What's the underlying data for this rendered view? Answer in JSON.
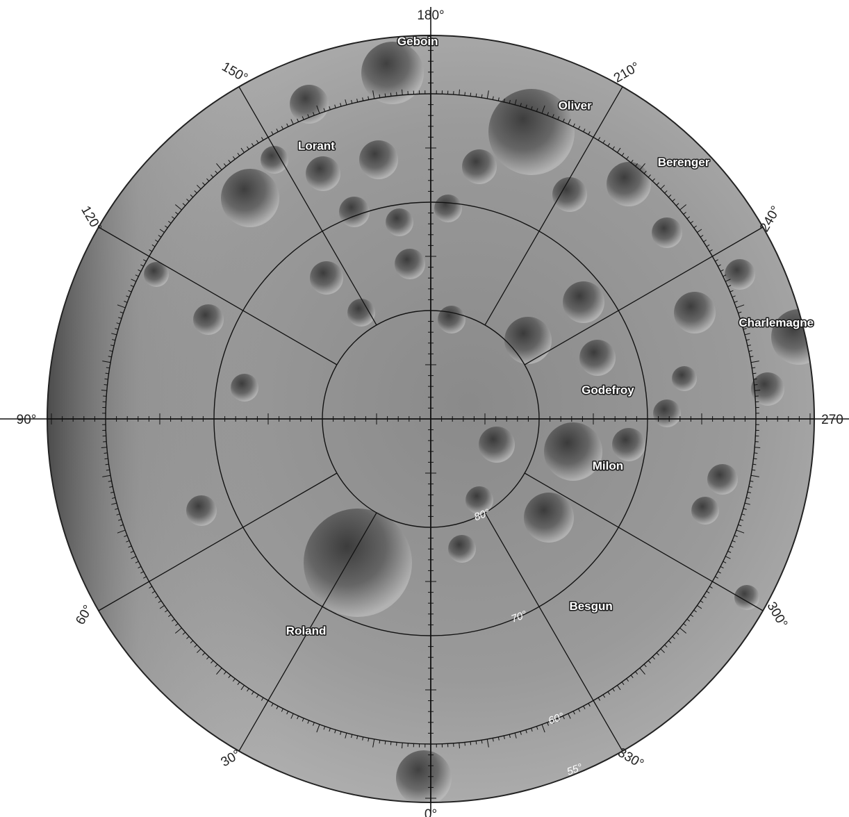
{
  "map": {
    "longitude_labels": [
      {
        "label": "180°",
        "lon": 180
      },
      {
        "label": "150°",
        "lon": 150
      },
      {
        "label": "210°",
        "lon": 210
      },
      {
        "label": "120°",
        "lon": 120
      },
      {
        "label": "240°",
        "lon": 240
      },
      {
        "label": "90°",
        "lon": 90
      },
      {
        "label": "270",
        "lon": 270
      },
      {
        "label": "60°",
        "lon": 60
      },
      {
        "label": "300°",
        "lon": 300
      },
      {
        "label": "30°",
        "lon": 30
      },
      {
        "label": "330°",
        "lon": 330
      },
      {
        "label": "0°",
        "lon": 0
      }
    ],
    "latitude_labels": [
      {
        "label": "80°",
        "lat": 80
      },
      {
        "label": "70°",
        "lat": 70
      },
      {
        "label": "60°",
        "lat": 60
      },
      {
        "label": "55°",
        "lat": 55
      }
    ],
    "latitude_circles": [
      80,
      70,
      60
    ],
    "meridians_every_deg": 30,
    "craters": [
      {
        "name": "Geboin",
        "lon": 178,
        "lat": 55.5
      },
      {
        "name": "Oliver",
        "lon": 205,
        "lat": 58.5
      },
      {
        "name": "Lorant",
        "lon": 157,
        "lat": 63
      },
      {
        "name": "Berenger",
        "lon": 225,
        "lat": 57
      },
      {
        "name": "Charlemagne",
        "lon": 255,
        "lat": 57
      },
      {
        "name": "Godefroy",
        "lon": 262,
        "lat": 73.5
      },
      {
        "name": "Milon",
        "lon": 286,
        "lat": 73
      },
      {
        "name": "Besgun",
        "lon": 320,
        "lat": 67
      },
      {
        "name": "Roland",
        "lon": 30,
        "lat": 67
      }
    ]
  }
}
